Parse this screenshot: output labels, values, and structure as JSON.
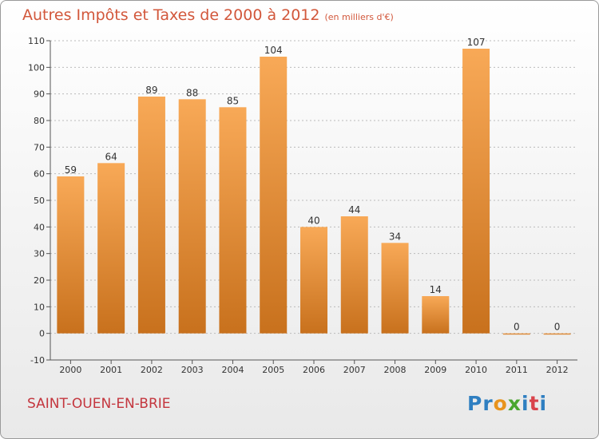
{
  "header": {
    "title": "Autres Impôts et Taxes de 2000 à 2012",
    "subtitle": "(en milliers d'€)"
  },
  "footer": {
    "commune": "SAINT-OUEN-EN-BRIE",
    "logo": {
      "letters": [
        "P",
        "r",
        "o",
        "x",
        "i",
        "t",
        "i"
      ],
      "colors": [
        "#2f7fc1",
        "#2f7fc1",
        "#e8941d",
        "#4aa62f",
        "#2f7fc1",
        "#d9434b",
        "#2f7fc1"
      ]
    }
  },
  "colors": {
    "bar_light": "#f8a957",
    "bar_dark": "#c8711d",
    "axis": "#555555",
    "grid": "#bbbbbb",
    "text": "#333333",
    "title": "#d2573b",
    "commune": "#c4363e"
  },
  "chart_data": {
    "type": "bar",
    "title": "Autres Impôts et Taxes de 2000 à 2012",
    "subtitle": "(en milliers d'€)",
    "categories": [
      "2000",
      "2001",
      "2002",
      "2003",
      "2004",
      "2005",
      "2006",
      "2007",
      "2008",
      "2009",
      "2010",
      "2011",
      "2012"
    ],
    "values": [
      59,
      64,
      89,
      88,
      85,
      104,
      40,
      44,
      34,
      14,
      107,
      0,
      0
    ],
    "data_labels": [
      "59",
      "64",
      "89",
      "88",
      "85",
      "104",
      "40",
      "44",
      "34",
      "14",
      "107",
      "0",
      "0"
    ],
    "ylim": [
      -10,
      110
    ],
    "yticks": [
      -10,
      0,
      10,
      20,
      30,
      40,
      50,
      60,
      70,
      80,
      90,
      100,
      110
    ],
    "xlabel": "",
    "ylabel": "",
    "grid": "horizontal dashed"
  }
}
